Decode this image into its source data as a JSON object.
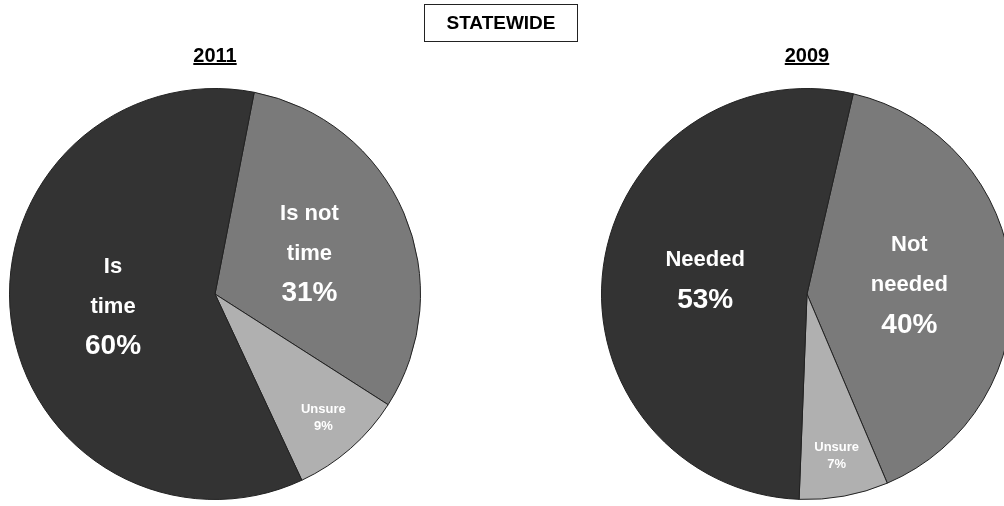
{
  "chart_data": [
    {
      "type": "pie",
      "title": "2011",
      "annotations": [
        "STATEWIDE"
      ],
      "categories": [
        "Is not\ntime",
        "Unsure",
        "Is\ntime"
      ],
      "values": [
        31,
        9,
        60
      ],
      "value_labels": [
        "31%",
        "9%",
        "60%"
      ],
      "colors": [
        "#7a7a7a",
        "#b0b0b0",
        "#333333"
      ],
      "legend": false
    },
    {
      "type": "pie",
      "title": "2009",
      "categories": [
        "Not\nneeded",
        "Unsure",
        "Needed"
      ],
      "values": [
        40,
        7,
        53
      ],
      "value_labels": [
        "40%",
        "7%",
        "53%"
      ],
      "colors": [
        "#7a7a7a",
        "#b0b0b0",
        "#333333"
      ],
      "legend": false
    }
  ]
}
